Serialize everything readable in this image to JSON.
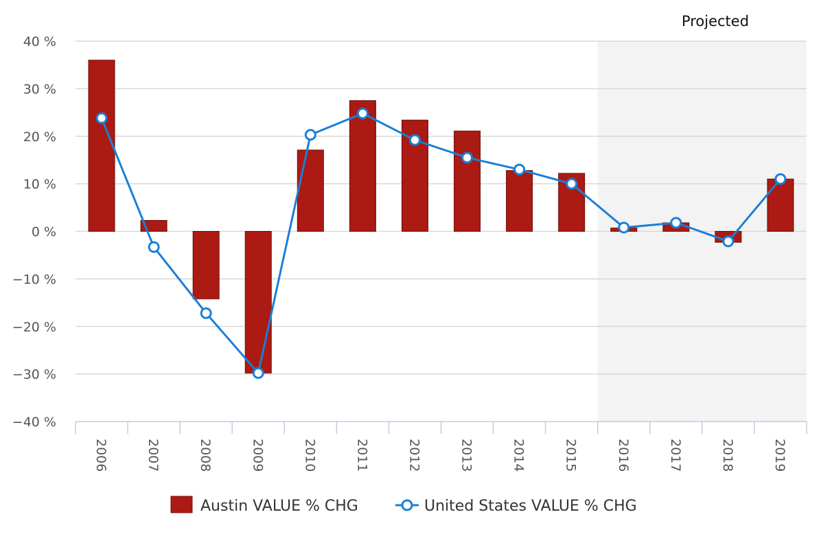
{
  "chart_data": {
    "type": "bar",
    "categories": [
      "2006",
      "2007",
      "2008",
      "2009",
      "2010",
      "2011",
      "2012",
      "2013",
      "2014",
      "2015",
      "2016",
      "2017",
      "2018",
      "2019"
    ],
    "series": [
      {
        "name": "Austin VALUE % CHG",
        "type": "bar",
        "color": "#ab1a13",
        "values": [
          36,
          2.3,
          -14.2,
          -29.8,
          17.1,
          27.5,
          23.4,
          21.1,
          12.8,
          12.2,
          0.7,
          1.8,
          -2.3,
          11.0
        ]
      },
      {
        "name": "United States VALUE % CHG",
        "type": "line",
        "color": "#1a7fd6",
        "values": [
          23.8,
          -3.3,
          -17.2,
          -29.8,
          20.3,
          24.8,
          19.2,
          15.5,
          13.0,
          10.0,
          0.8,
          1.8,
          -2.1,
          11.0
        ]
      }
    ],
    "ylim": [
      -40,
      40
    ],
    "yticks": [
      "40 %",
      "30 %",
      "20 %",
      "10 %",
      "0 %",
      "−10 %",
      "−20 %",
      "−30 %",
      "−40 %"
    ],
    "ytick_values": [
      40,
      30,
      20,
      10,
      0,
      -10,
      -20,
      -30,
      -40
    ],
    "projected_label": "Projected",
    "projected_from_index": 10,
    "grid": true,
    "legend_position": "bottom"
  }
}
